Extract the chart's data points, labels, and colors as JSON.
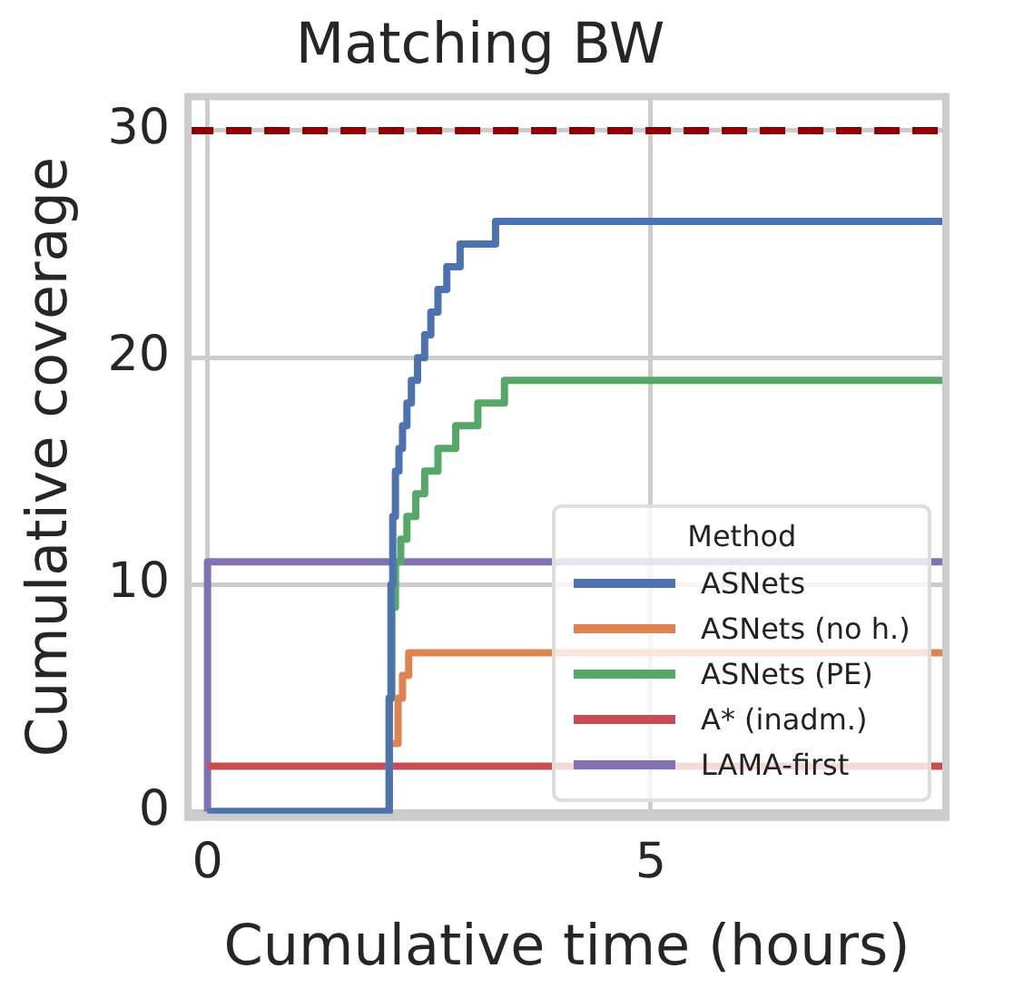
{
  "chart_data": {
    "type": "step",
    "title": "Matching BW",
    "xlabel": "Cumulative time (hours)",
    "ylabel": "Cumulative coverage",
    "legend_title": "Method",
    "legend": "bottom right",
    "grid": true,
    "xlim": [
      -0.22,
      8.33
    ],
    "ylim": [
      -0.25,
      31.5
    ],
    "xticks": [
      0,
      5
    ],
    "yticks": [
      0,
      10,
      20,
      30
    ],
    "ref_lines": [
      {
        "axis": "y",
        "value": 30,
        "label": null,
        "color": "#8b0000",
        "line_style": "dashed"
      }
    ],
    "series": [
      {
        "name": "ASNets",
        "color": "#4c72b0",
        "x": [
          0,
          2.05,
          2.07,
          2.09,
          2.12,
          2.16,
          2.2,
          2.25,
          2.3,
          2.37,
          2.45,
          2.52,
          2.6,
          2.7,
          2.85,
          3.05,
          3.25,
          8.33
        ],
        "values": [
          0,
          5,
          10,
          13,
          15,
          16,
          17,
          18,
          19,
          20,
          21,
          22,
          23,
          24,
          25,
          25,
          26,
          26
        ]
      },
      {
        "name": "ASNets (no h.)",
        "color": "#dd8452",
        "x": [
          2.05,
          2.15,
          2.2,
          2.27,
          8.33
        ],
        "values": [
          3,
          5,
          6,
          7,
          7
        ]
      },
      {
        "name": "ASNets (PE)",
        "color": "#55a868",
        "x": [
          0,
          2.05,
          2.08,
          2.12,
          2.18,
          2.25,
          2.35,
          2.45,
          2.6,
          2.8,
          3.05,
          3.35,
          8.33
        ],
        "values": [
          0,
          5,
          9,
          11,
          12,
          13,
          14,
          15,
          16,
          17,
          18,
          19,
          19
        ]
      },
      {
        "name": "A* (inadm.)",
        "color": "#c44e52",
        "x": [
          0,
          8.33
        ],
        "values": [
          2,
          2
        ]
      },
      {
        "name": "LAMA-first",
        "color": "#8172b3",
        "x": [
          0,
          0,
          8.33
        ],
        "values": [
          0,
          11,
          11
        ]
      }
    ]
  }
}
